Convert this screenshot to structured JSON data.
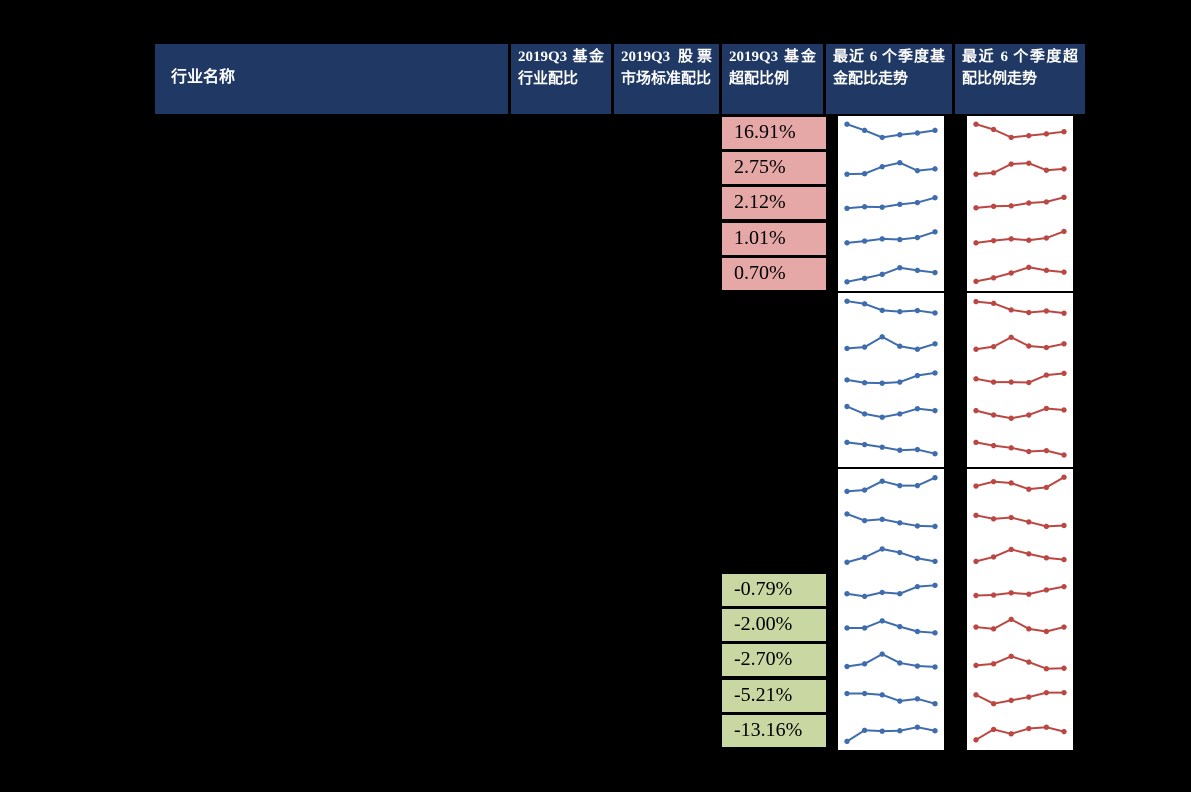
{
  "header": {
    "bg_color": "#1F3864",
    "text_color": "#FFFFFF",
    "columns": [
      {
        "label": "行业名称"
      },
      {
        "label": "2019Q3 基金行业配比"
      },
      {
        "label": "2019Q3 股票市场标准配比"
      },
      {
        "label": "2019Q3 基金超配比例"
      },
      {
        "label": "最近 6 个季度基金配比走势"
      },
      {
        "label": "最近 6 个季度超配比例走势"
      }
    ]
  },
  "chart_data": {
    "type": "table",
    "columns": [
      "行业名称",
      "2019Q3 基金行业配比",
      "2019Q3 股票市场标准配比",
      "2019Q3 基金超配比例",
      "最近 6 个季度基金配比走势",
      "最近 6 个季度超配比例走势"
    ],
    "overweight_positive_cells": {
      "bg_color": "#E5A8A7",
      "values": [
        "16.91%",
        "2.75%",
        "2.12%",
        "1.01%",
        "0.70%"
      ]
    },
    "overweight_negative_cells": {
      "bg_color": "#C9D7A3",
      "values": [
        "-0.79%",
        "-2.00%",
        "-2.70%",
        "-5.21%",
        "-13.16%"
      ]
    },
    "sparklines": {
      "points_per_sparkline": 6,
      "rows_per_block": [
        5,
        5,
        8
      ],
      "fund_allocation_trend": {
        "color": "#3E6CAD",
        "series": [
          [
            0.9,
            0.62,
            0.3,
            0.42,
            0.5,
            0.62
          ],
          [
            0.22,
            0.24,
            0.56,
            0.74,
            0.38,
            0.46
          ],
          [
            0.26,
            0.33,
            0.31,
            0.44,
            0.52,
            0.74
          ],
          [
            0.28,
            0.36,
            0.46,
            0.43,
            0.52,
            0.78
          ],
          [
            0.1,
            0.26,
            0.44,
            0.74,
            0.62,
            0.52
          ],
          [
            0.9,
            0.78,
            0.48,
            0.42,
            0.47,
            0.36
          ],
          [
            0.34,
            0.4,
            0.87,
            0.44,
            0.3,
            0.55
          ],
          [
            0.5,
            0.37,
            0.35,
            0.4,
            0.7,
            0.82
          ],
          [
            0.84,
            0.5,
            0.35,
            0.5,
            0.74,
            0.65
          ],
          [
            0.8,
            0.7,
            0.58,
            0.44,
            0.47,
            0.28
          ],
          [
            0.26,
            0.32,
            0.72,
            0.52,
            0.52,
            0.88
          ],
          [
            0.82,
            0.52,
            0.58,
            0.42,
            0.28,
            0.26
          ],
          [
            0.22,
            0.44,
            0.82,
            0.66,
            0.4,
            0.26
          ],
          [
            0.38,
            0.26,
            0.44,
            0.38,
            0.7,
            0.76
          ],
          [
            0.46,
            0.46,
            0.78,
            0.52,
            0.3,
            0.24
          ],
          [
            0.3,
            0.42,
            0.86,
            0.46,
            0.32,
            0.28
          ],
          [
            0.66,
            0.66,
            0.6,
            0.32,
            0.42,
            0.2
          ],
          [
            0.08,
            0.58,
            0.54,
            0.56,
            0.72,
            0.56
          ]
        ]
      },
      "overweight_ratio_trend": {
        "color": "#BB4743",
        "series": [
          [
            0.9,
            0.66,
            0.3,
            0.38,
            0.46,
            0.56
          ],
          [
            0.22,
            0.28,
            0.68,
            0.72,
            0.4,
            0.46
          ],
          [
            0.28,
            0.35,
            0.37,
            0.5,
            0.55,
            0.76
          ],
          [
            0.28,
            0.38,
            0.46,
            0.4,
            0.5,
            0.8
          ],
          [
            0.12,
            0.28,
            0.5,
            0.76,
            0.62,
            0.54
          ],
          [
            0.88,
            0.8,
            0.5,
            0.38,
            0.45,
            0.35
          ],
          [
            0.3,
            0.42,
            0.85,
            0.45,
            0.38,
            0.55
          ],
          [
            0.55,
            0.4,
            0.4,
            0.38,
            0.72,
            0.8
          ],
          [
            0.65,
            0.45,
            0.3,
            0.45,
            0.75,
            0.68
          ],
          [
            0.8,
            0.65,
            0.55,
            0.38,
            0.42,
            0.22
          ],
          [
            0.5,
            0.7,
            0.64,
            0.36,
            0.44,
            0.9
          ],
          [
            0.76,
            0.6,
            0.66,
            0.46,
            0.26,
            0.3
          ],
          [
            0.26,
            0.46,
            0.8,
            0.6,
            0.42,
            0.34
          ],
          [
            0.3,
            0.32,
            0.42,
            0.36,
            0.55,
            0.7
          ],
          [
            0.5,
            0.42,
            0.85,
            0.42,
            0.3,
            0.5
          ],
          [
            0.35,
            0.42,
            0.76,
            0.5,
            0.2,
            0.22
          ],
          [
            0.6,
            0.2,
            0.35,
            0.5,
            0.7,
            0.7
          ],
          [
            0.15,
            0.62,
            0.42,
            0.66,
            0.72,
            0.52
          ]
        ]
      }
    }
  }
}
